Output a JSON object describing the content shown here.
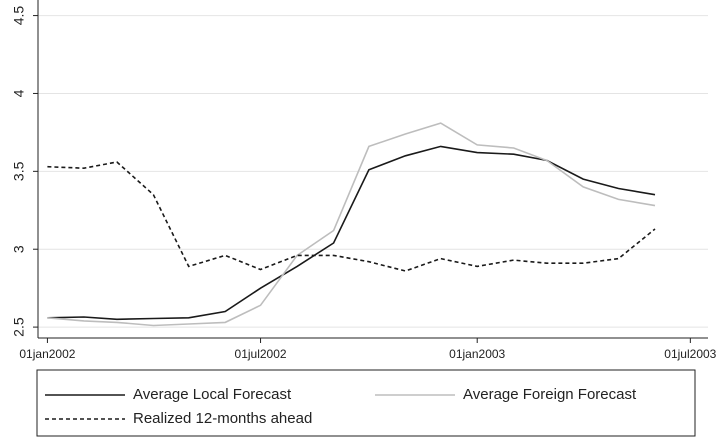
{
  "chart_data": {
    "type": "line",
    "x": [
      "2002-01-01",
      "2002-02-01",
      "2002-03-01",
      "2002-04-01",
      "2002-05-01",
      "2002-06-01",
      "2002-07-01",
      "2002-08-01",
      "2002-09-01",
      "2002-10-01",
      "2002-11-01",
      "2002-12-01",
      "2003-01-01",
      "2003-02-01",
      "2003-03-01",
      "2003-04-01",
      "2003-05-01",
      "2003-06-01"
    ],
    "series": [
      {
        "name": "Average Local Forecast",
        "color": "#1a1a1a",
        "dash": false,
        "values": [
          2.56,
          2.565,
          2.55,
          2.555,
          2.56,
          2.6,
          2.75,
          2.89,
          3.04,
          3.51,
          3.6,
          3.66,
          3.62,
          3.61,
          3.57,
          3.45,
          3.39,
          3.35
        ]
      },
      {
        "name": "Average Foreign Forecast",
        "color": "#bdbdbd",
        "dash": false,
        "values": [
          2.56,
          2.54,
          2.53,
          2.51,
          2.52,
          2.53,
          2.64,
          2.96,
          3.12,
          3.66,
          3.74,
          3.81,
          3.67,
          3.65,
          3.57,
          3.4,
          3.32,
          3.28
        ]
      },
      {
        "name": "Realized 12-months ahead",
        "color": "#1a1a1a",
        "dash": true,
        "values": [
          3.53,
          3.52,
          3.56,
          3.35,
          2.89,
          2.96,
          2.87,
          2.96,
          2.96,
          2.92,
          2.86,
          2.94,
          2.89,
          2.93,
          2.91,
          2.91,
          2.94,
          3.13
        ]
      }
    ],
    "xlim": [
      "2001-12-24",
      "2003-07-16"
    ],
    "xticks": [
      {
        "value": "2002-01-01",
        "label": "01jan2002"
      },
      {
        "value": "2002-07-01",
        "label": "01jul2002"
      },
      {
        "value": "2003-01-01",
        "label": "01jan2003"
      },
      {
        "value": "2003-07-01",
        "label": "01jul2003"
      }
    ],
    "ylim": [
      2.43,
      4.6
    ],
    "yticks": [
      2.5,
      3,
      3.5,
      4,
      4.5
    ],
    "grid": true
  }
}
